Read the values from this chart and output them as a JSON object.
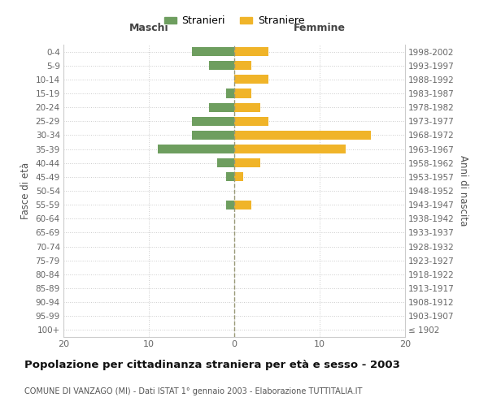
{
  "age_groups": [
    "100+",
    "95-99",
    "90-94",
    "85-89",
    "80-84",
    "75-79",
    "70-74",
    "65-69",
    "60-64",
    "55-59",
    "50-54",
    "45-49",
    "40-44",
    "35-39",
    "30-34",
    "25-29",
    "20-24",
    "15-19",
    "10-14",
    "5-9",
    "0-4"
  ],
  "birth_years": [
    "≤ 1902",
    "1903-1907",
    "1908-1912",
    "1913-1917",
    "1918-1922",
    "1923-1927",
    "1928-1932",
    "1933-1937",
    "1938-1942",
    "1943-1947",
    "1948-1952",
    "1953-1957",
    "1958-1962",
    "1963-1967",
    "1968-1972",
    "1973-1977",
    "1978-1982",
    "1983-1987",
    "1988-1992",
    "1993-1997",
    "1998-2002"
  ],
  "maschi": [
    0,
    0,
    0,
    0,
    0,
    0,
    0,
    0,
    0,
    1,
    0,
    1,
    2,
    9,
    5,
    5,
    3,
    1,
    0,
    3,
    5
  ],
  "femmine": [
    0,
    0,
    0,
    0,
    0,
    0,
    0,
    0,
    0,
    2,
    0,
    1,
    3,
    13,
    16,
    4,
    3,
    2,
    4,
    2,
    4
  ],
  "color_maschi": "#6e9e5f",
  "color_femmine": "#f0b429",
  "xlim": [
    -20,
    20
  ],
  "xlabel_left": "Maschi",
  "xlabel_right": "Femmine",
  "ylabel_left": "Fasce di età",
  "ylabel_right": "Anni di nascita",
  "title": "Popolazione per cittadinanza straniera per età e sesso - 2003",
  "subtitle": "COMUNE DI VANZAGO (MI) - Dati ISTAT 1° gennaio 2003 - Elaborazione TUTTITALIA.IT",
  "legend_maschi": "Stranieri",
  "legend_femmine": "Straniere",
  "background_color": "#ffffff",
  "grid_color": "#cccccc",
  "tick_values": [
    -20,
    -10,
    0,
    10,
    20
  ],
  "tick_labels": [
    "20",
    "10",
    "0",
    "10",
    "20"
  ]
}
